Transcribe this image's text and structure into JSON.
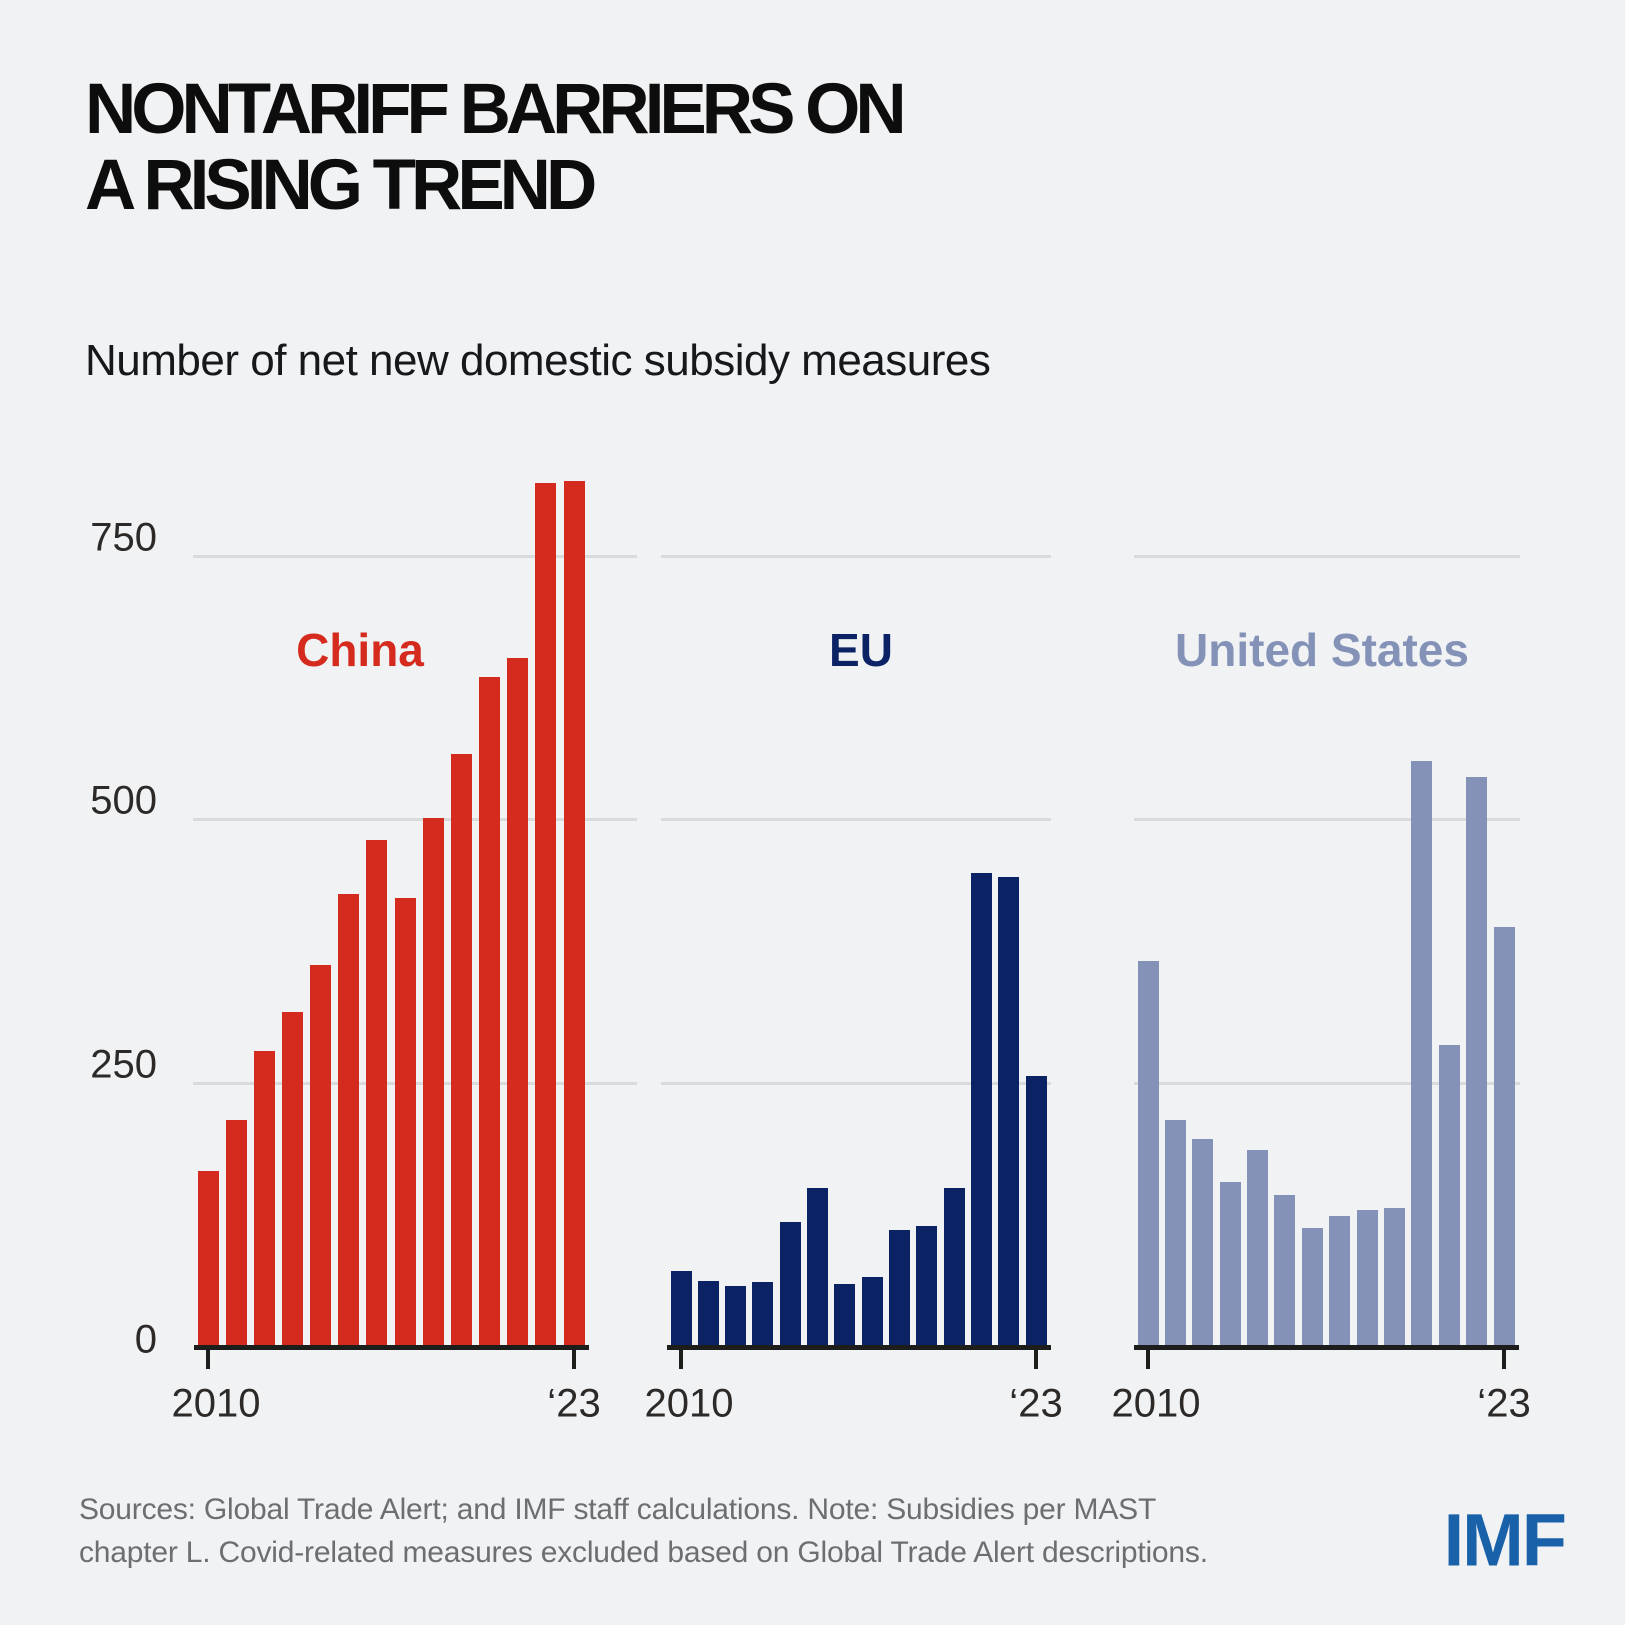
{
  "page": {
    "background": "#f1f2f4"
  },
  "header": {
    "title": "NONTARIFF BARRIERS ON\nA RISING TREND",
    "subtitle": "Number of net new domestic subsidy measures"
  },
  "chart_data": {
    "type": "bar",
    "x": [
      2010,
      2011,
      2012,
      2013,
      2014,
      2015,
      2016,
      2017,
      2018,
      2019,
      2020,
      2021,
      2022,
      2023
    ],
    "x_tick_labels": [
      "2010",
      "‘23"
    ],
    "ylim": [
      0,
      850
    ],
    "yticks": [
      0,
      250,
      500,
      750
    ],
    "grid": true,
    "gridline_color": "#d9dadc",
    "axis_color": "#1d1d1b",
    "series": [
      {
        "name": "China",
        "color": "#d52b1e",
        "values": [
          165,
          214,
          279,
          316,
          361,
          428,
          479,
          424,
          500,
          561,
          634,
          652,
          818,
          820
        ]
      },
      {
        "name": "EU",
        "color": "#0b2265",
        "values": [
          70,
          61,
          56,
          60,
          117,
          149,
          58,
          65,
          109,
          113,
          149,
          448,
          444,
          255
        ]
      },
      {
        "name": "United States",
        "color": "#8492b8",
        "values": [
          365,
          214,
          196,
          155,
          185,
          142,
          111,
          122,
          128,
          130,
          554,
          285,
          539,
          397
        ]
      }
    ]
  },
  "footer": {
    "note": "Sources: Global Trade Alert; and IMF staff calculations. Note: Subsidies per MAST\nchapter L. Covid-related measures excluded based on Global Trade Alert descriptions.",
    "logo": "IMF",
    "logo_color": "#1962a9"
  }
}
